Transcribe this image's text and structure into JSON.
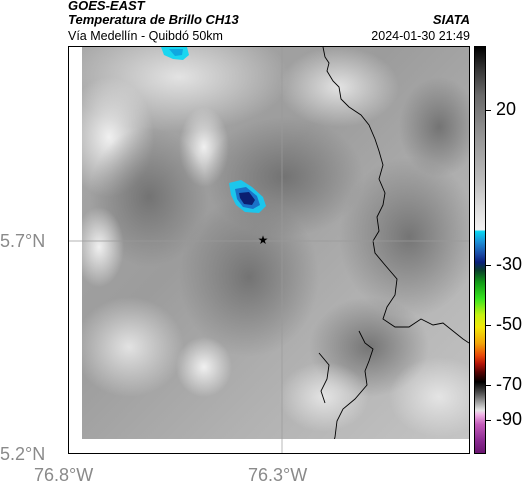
{
  "header": {
    "satellite": "GOES-EAST",
    "product": "Temperatura de Brillo CH13",
    "route": "Vía Medellín - Quibdó 50km",
    "organization": "SIATA",
    "datetime": "2024-01-30 21:49"
  },
  "axes": {
    "lat_labels": [
      "5.7°N",
      "5.2°N"
    ],
    "lon_labels": [
      "76.8°W",
      "76.3°W"
    ]
  },
  "marker": {
    "icon": "star-icon"
  },
  "colorbar": {
    "tick_labels": [
      "20",
      "-30",
      "-50",
      "-70",
      "-90"
    ],
    "palette": {
      "warm_gray": "#bdbdbd",
      "cyan": "#0ad7f2",
      "blue": "#1a4aa5",
      "green": "#37e41f",
      "yellow": "#f2e80a",
      "red": "#b4140a",
      "magenta": "#c25ab8"
    }
  }
}
